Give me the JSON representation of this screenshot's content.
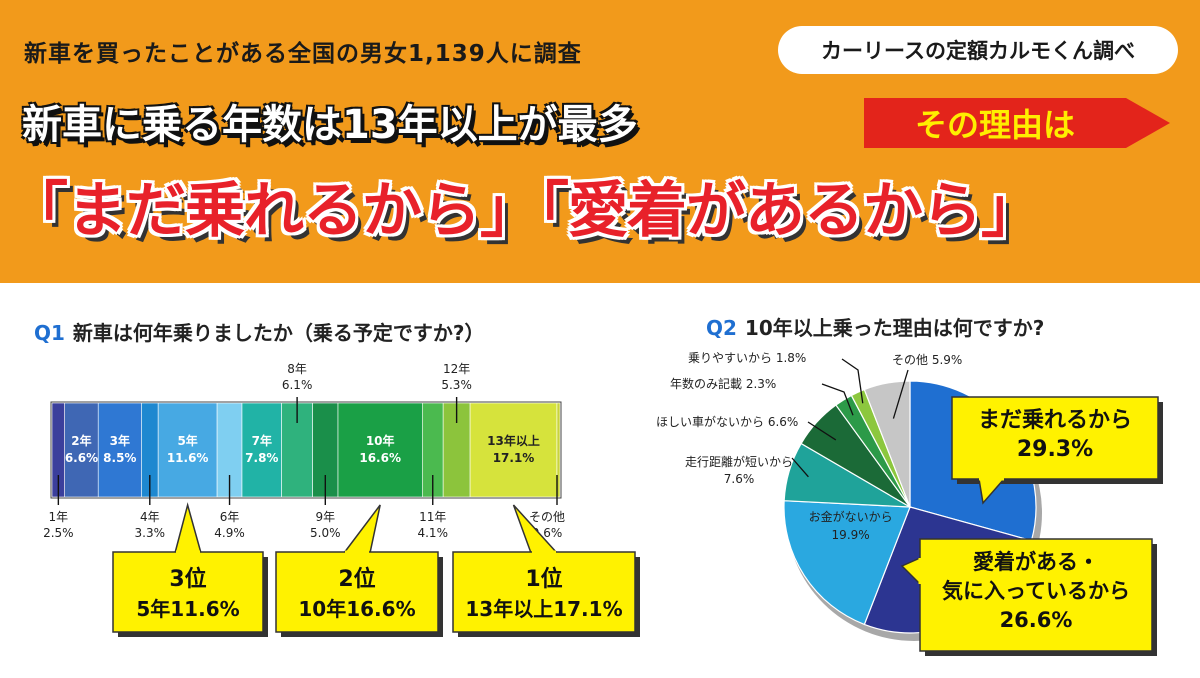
{
  "header": {
    "survey": "新車を買ったことがある全国の男女1,139人に調査",
    "credit": "カーリースの定額カルモくん調べ",
    "headline": "新車に乗る年数は13年以上が最多",
    "reason_tag": "その理由は",
    "big_quote": "「まだ乗れるから」「愛着があるから」"
  },
  "colors": {
    "banner": "#f29a1b",
    "accent_red": "#e3241b",
    "callout_yellow": "#fff200"
  },
  "chart_data": [
    {
      "type": "bar",
      "stacked": true,
      "orientation": "horizontal",
      "question_no": "Q1",
      "question": "新車は何年乗りましたか（乗る予定ですか?）",
      "unit": "%",
      "segments": [
        {
          "name": "1年",
          "value": 2.5,
          "color": "#3b3f9c",
          "label_pos": "below"
        },
        {
          "name": "2年",
          "value": 6.6,
          "color": "#3f67b4",
          "label_pos": "inside"
        },
        {
          "name": "3年",
          "value": 8.5,
          "color": "#2f78d3",
          "label_pos": "inside"
        },
        {
          "name": "4年",
          "value": 3.3,
          "color": "#1e88d0",
          "label_pos": "below"
        },
        {
          "name": "5年",
          "value": 11.6,
          "color": "#47a9e3",
          "label_pos": "inside"
        },
        {
          "name": "6年",
          "value": 4.9,
          "color": "#7fcff1",
          "label_pos": "below"
        },
        {
          "name": "7年",
          "value": 7.8,
          "color": "#21b3a6",
          "label_pos": "inside"
        },
        {
          "name": "8年",
          "value": 6.1,
          "color": "#2fb27d",
          "label_pos": "above"
        },
        {
          "name": "9年",
          "value": 5.0,
          "color": "#1a8f4a",
          "label_pos": "below"
        },
        {
          "name": "10年",
          "value": 16.6,
          "color": "#1aa046",
          "label_pos": "inside"
        },
        {
          "name": "11年",
          "value": 4.1,
          "color": "#4bba4f",
          "label_pos": "below"
        },
        {
          "name": "12年",
          "value": 5.3,
          "color": "#8cc43c",
          "label_pos": "above"
        },
        {
          "name": "13年以上",
          "value": 17.1,
          "color": "#d6e33c",
          "label_pos": "inside"
        },
        {
          "name": "その他",
          "value": 0.6,
          "color": "#c9d43a",
          "label_pos": "below"
        }
      ],
      "callouts": [
        {
          "rank": "3位",
          "text": "5年11.6%",
          "segment": "5年"
        },
        {
          "rank": "2位",
          "text": "10年16.6%",
          "segment": "10年"
        },
        {
          "rank": "1位",
          "text": "13年以上17.1%",
          "segment": "13年以上"
        }
      ]
    },
    {
      "type": "pie",
      "question_no": "Q2",
      "question": "10年以上乗った理由は何ですか?",
      "unit": "%",
      "slices": [
        {
          "name": "まだ乗れるから",
          "value": 29.3,
          "color": "#1f6fd1"
        },
        {
          "name": "愛着がある・気に入っているから",
          "value": 26.6,
          "color": "#2c3591"
        },
        {
          "name": "お金がないから",
          "value": 19.9,
          "color": "#2aa8e0"
        },
        {
          "name": "走行距離が短いから",
          "value": 7.6,
          "color": "#1fa39a"
        },
        {
          "name": "ほしい車がないから",
          "value": 6.6,
          "color": "#1b6a37"
        },
        {
          "name": "年数のみ記載",
          "value": 2.3,
          "color": "#2c9a48"
        },
        {
          "name": "乗りやすいから",
          "value": 1.8,
          "color": "#8cc73e"
        },
        {
          "name": "その他",
          "value": 5.9,
          "color": "#c6c6c6"
        }
      ],
      "callouts": [
        {
          "text1": "まだ乗れるから",
          "text2": "29.3%"
        },
        {
          "text1": "愛着がある・",
          "text2": "気に入っているから",
          "text3": "26.6%"
        }
      ]
    }
  ]
}
